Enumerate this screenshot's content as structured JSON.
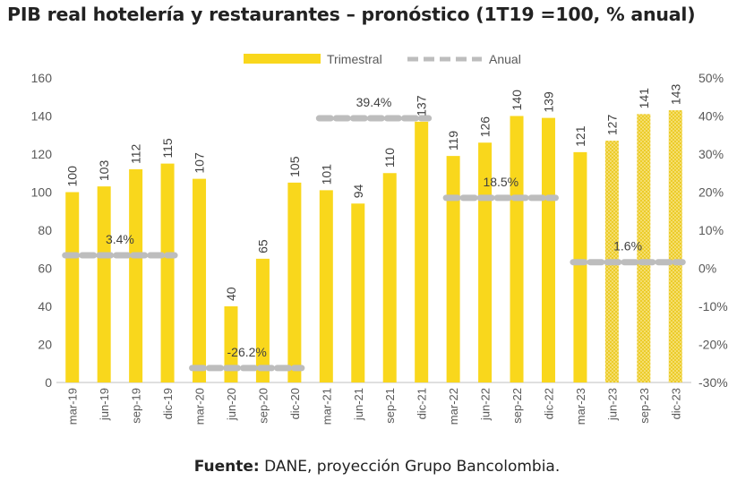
{
  "title": "PIB real hotelería y restaurantes – pronóstico (1T19 =100, % anual)",
  "source": {
    "label": "Fuente:",
    "text": "DANE, proyección Grupo Bancolombia."
  },
  "colors": {
    "bar": "#F9D71C",
    "bar_hatch": "#F3E36A",
    "line": "#BDBDBD",
    "text": "#595959"
  },
  "chart_data": {
    "type": "bar",
    "title": "PIB real hotelería y restaurantes – pronóstico (1T19 =100, % anual)",
    "categories": [
      "mar-19",
      "jun-19",
      "sep-19",
      "dic-19",
      "mar-20",
      "jun-20",
      "sep-20",
      "dic-20",
      "mar-21",
      "jun-21",
      "sep-21",
      "dic-21",
      "mar-22",
      "jun-22",
      "sep-22",
      "dic-22",
      "mar-23",
      "jun-23",
      "sep-23",
      "dic-23"
    ],
    "series": [
      {
        "name": "Trimestral",
        "axis": "left",
        "values": [
          100,
          103,
          112,
          115,
          107,
          40,
          65,
          105,
          101,
          94,
          110,
          137,
          119,
          126,
          140,
          139,
          121,
          127,
          141,
          143
        ],
        "forecast_from_index": 17
      },
      {
        "name": "Anual",
        "axis": "right",
        "style": "dashed-line",
        "segments": [
          {
            "from": "mar-19",
            "to": "dic-19",
            "value": 3.4,
            "label": "3.4%"
          },
          {
            "from": "mar-20",
            "to": "dic-20",
            "value": -26.2,
            "label": "-26.2%"
          },
          {
            "from": "mar-21",
            "to": "dic-21",
            "value": 39.4,
            "label": "39.4%"
          },
          {
            "from": "mar-22",
            "to": "dic-22",
            "value": 18.5,
            "label": "18.5%"
          },
          {
            "from": "mar-23",
            "to": "dic-23",
            "value": 1.6,
            "label": "1.6%"
          }
        ]
      }
    ],
    "y_left": {
      "ticks": [
        0,
        20,
        40,
        60,
        80,
        100,
        120,
        140,
        160
      ],
      "ylim": [
        0,
        160
      ]
    },
    "y_right": {
      "ticks": [
        "-30%",
        "-20%",
        "-10%",
        "0%",
        "10%",
        "20%",
        "30%",
        "40%",
        "50%"
      ],
      "ylim": [
        -30,
        50
      ]
    },
    "legend_position": "top-center",
    "grid": false
  }
}
